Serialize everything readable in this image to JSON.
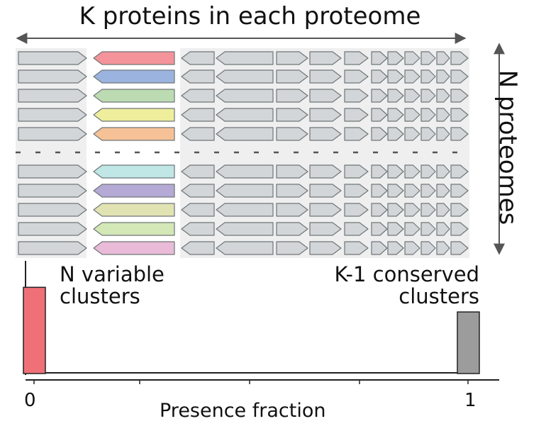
{
  "title": "K proteins in each proteome",
  "side_label": "N proteomes",
  "annotations": {
    "variable": [
      "N variable",
      "clusters"
    ],
    "conserved": [
      "K-1 conserved",
      "clusters"
    ]
  },
  "axis": {
    "xlabel": "Presence fraction",
    "tick_left": "0",
    "tick_right": "1"
  },
  "colors": {
    "gene_fill": "#d2d6d8",
    "gene_stroke": "#707678",
    "band": "#efefef",
    "bar_variable": "#f07078",
    "bar_conserved": "#9c9c9c"
  },
  "variable_gene_colors": [
    "#f4939a",
    "#9bb3df",
    "#bcdbb2",
    "#eeee9c",
    "#f6c197",
    "#c0e6e6",
    "#b4aad5",
    "#e2e3b3",
    "#d3e8b6",
    "#e9bbd9"
  ],
  "chart_data": {
    "type": "bar",
    "x": [
      0,
      1
    ],
    "values": [
      0.77,
      0.55
    ],
    "series": [
      {
        "name": "N variable clusters",
        "x": 0,
        "value": 0.77
      },
      {
        "name": "K-1 conserved clusters",
        "x": 1,
        "value": 0.55
      }
    ],
    "xlabel": "Presence fraction",
    "ylabel": "",
    "xlim": [
      0,
      1
    ],
    "ylim": [
      0,
      1
    ]
  }
}
